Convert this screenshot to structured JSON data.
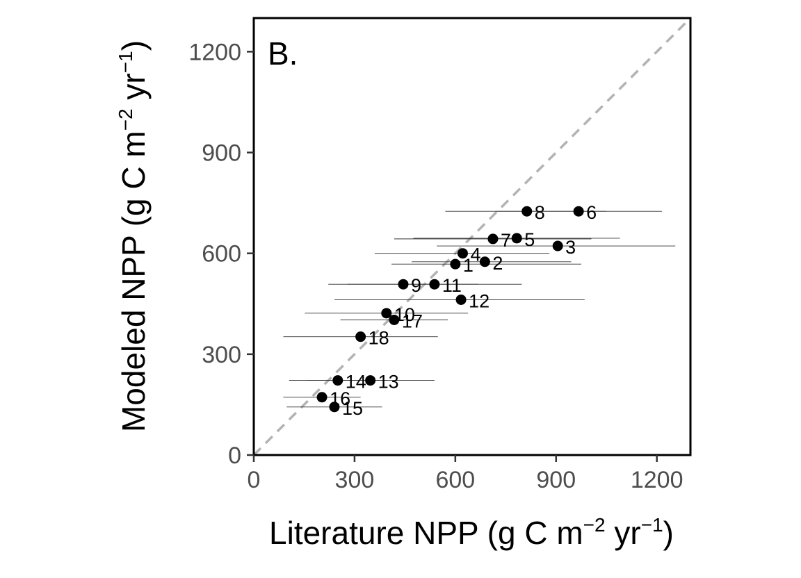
{
  "chart_data": {
    "type": "scatter",
    "panel_label": "B.",
    "xlabel": {
      "main": "Literature NPP (g C m",
      "exp1": "−2",
      "mid": " yr",
      "exp2": "−1",
      "close": ")"
    },
    "ylabel": {
      "main": "Modeled NPP (g C m",
      "exp1": "−2",
      "mid": " yr",
      "exp2": "−1",
      "close": ")"
    },
    "xlim": [
      0,
      1300
    ],
    "ylim": [
      0,
      1300
    ],
    "x_ticks": [
      "0",
      "300",
      "600",
      "900",
      "1200"
    ],
    "y_ticks": [
      "0",
      "300",
      "600",
      "900",
      "1200"
    ],
    "reference_line": "1:1",
    "grid": false,
    "points": [
      {
        "label": "1",
        "x": 600,
        "y": 568,
        "xmin": 410,
        "xmax": 975
      },
      {
        "label": "2",
        "x": 688,
        "y": 575,
        "xmin": 470,
        "xmax": 945
      },
      {
        "label": "3",
        "x": 905,
        "y": 622,
        "xmin": 545,
        "xmax": 1255
      },
      {
        "label": "4",
        "x": 622,
        "y": 600,
        "xmin": 360,
        "xmax": 880
      },
      {
        "label": "5",
        "x": 783,
        "y": 645,
        "xmin": 475,
        "xmax": 1090
      },
      {
        "label": "6",
        "x": 967,
        "y": 725,
        "xmin": 720,
        "xmax": 1215
      },
      {
        "label": "7",
        "x": 712,
        "y": 643,
        "xmin": 418,
        "xmax": 1005
      },
      {
        "label": "8",
        "x": 813,
        "y": 725,
        "xmin": 570,
        "xmax": 1050
      },
      {
        "label": "9",
        "x": 445,
        "y": 508,
        "xmin": 222,
        "xmax": 668
      },
      {
        "label": "10",
        "x": 395,
        "y": 422,
        "xmin": 152,
        "xmax": 638
      },
      {
        "label": "11",
        "x": 538,
        "y": 508,
        "xmin": 278,
        "xmax": 798
      },
      {
        "label": "12",
        "x": 617,
        "y": 462,
        "xmin": 240,
        "xmax": 985
      },
      {
        "label": "13",
        "x": 347,
        "y": 222,
        "xmin": 158,
        "xmax": 538
      },
      {
        "label": "14",
        "x": 250,
        "y": 222,
        "xmin": 105,
        "xmax": 396
      },
      {
        "label": "15",
        "x": 240,
        "y": 143,
        "xmin": 98,
        "xmax": 382
      },
      {
        "label": "16",
        "x": 203,
        "y": 172,
        "xmin": 88,
        "xmax": 318
      },
      {
        "label": "17",
        "x": 418,
        "y": 402,
        "xmin": 258,
        "xmax": 578
      },
      {
        "label": "18",
        "x": 318,
        "y": 352,
        "xmin": 88,
        "xmax": 548
      }
    ]
  }
}
